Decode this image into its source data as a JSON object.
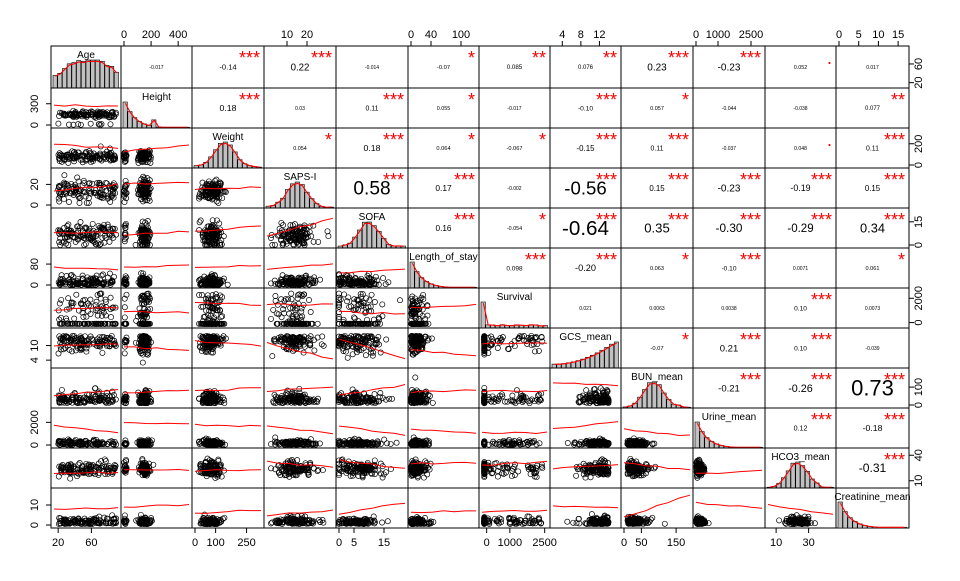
{
  "chart_data": {
    "type": "scatter-matrix",
    "title": "",
    "variables": [
      "Age",
      "Height",
      "Weight",
      "SAPS-I",
      "SOFA",
      "Length_of_stay",
      "Survival",
      "GCS_mean",
      "BUN_mean",
      "Urine_mean",
      "HCO3_mean",
      "Creatinine_mean"
    ],
    "diagonal_labels": [
      "Age",
      "Height",
      "Weight",
      "SAPS-I",
      "SOFA",
      "Length_of_stay",
      "Survival",
      "GCS_mean",
      "BUN_mean",
      "Urine_mean",
      "HCO3_mean",
      "Creatinine_mean"
    ],
    "ranges": [
      [
        15,
        92
      ],
      [
        0,
        480
      ],
      [
        0,
        320
      ],
      [
        0,
        33
      ],
      [
        0,
        22
      ],
      [
        0,
        130
      ],
      [
        -200,
        2600
      ],
      [
        2,
        16
      ],
      [
        0,
        190
      ],
      [
        0,
        3000
      ],
      [
        5,
        45
      ],
      [
        0,
        17
      ]
    ],
    "top_axis_ticks": [
      {
        "col": 1,
        "labels": [
          "0",
          "200",
          "400"
        ],
        "values": [
          0,
          200,
          400
        ]
      },
      {
        "col": 3,
        "labels": [
          "10",
          "20"
        ],
        "values": [
          10,
          20
        ]
      },
      {
        "col": 5,
        "labels": [
          "0",
          "40",
          "100"
        ],
        "values": [
          0,
          40,
          100
        ]
      },
      {
        "col": 7,
        "labels": [
          "4",
          "8",
          "12"
        ],
        "values": [
          4,
          8,
          12
        ]
      },
      {
        "col": 9,
        "labels": [
          "0",
          "1000",
          "2500"
        ],
        "values": [
          0,
          1000,
          2500
        ]
      },
      {
        "col": 11,
        "labels": [
          "0",
          "5",
          "10",
          "15"
        ],
        "values": [
          0,
          5,
          10,
          15
        ]
      }
    ],
    "bottom_axis_ticks": [
      {
        "col": 0,
        "labels": [
          "20",
          "60"
        ],
        "values": [
          20,
          60
        ]
      },
      {
        "col": 2,
        "labels": [
          "0",
          "100",
          "250"
        ],
        "values": [
          0,
          100,
          250
        ]
      },
      {
        "col": 4,
        "labels": [
          "0",
          "5",
          "15"
        ],
        "values": [
          0,
          5,
          15
        ]
      },
      {
        "col": 6,
        "labels": [
          "0",
          "1000",
          "2500"
        ],
        "values": [
          0,
          1000,
          2500
        ]
      },
      {
        "col": 8,
        "labels": [
          "0",
          "50",
          "150"
        ],
        "values": [
          0,
          50,
          150
        ]
      },
      {
        "col": 10,
        "labels": [
          "10",
          "30"
        ],
        "values": [
          10,
          30
        ]
      }
    ],
    "left_axis_ticks": [
      {
        "row": 1,
        "labels": [
          "0",
          "300"
        ],
        "values": [
          0,
          300
        ]
      },
      {
        "row": 3,
        "labels": [
          "0",
          "20"
        ],
        "values": [
          0,
          20
        ]
      },
      {
        "row": 5,
        "labels": [
          "0",
          "80"
        ],
        "values": [
          0,
          80
        ]
      },
      {
        "row": 7,
        "labels": [
          "4",
          "10"
        ],
        "values": [
          4,
          10
        ]
      },
      {
        "row": 9,
        "labels": [
          "0",
          "2000"
        ],
        "values": [
          0,
          2000
        ]
      },
      {
        "row": 11,
        "labels": [
          "0",
          "10"
        ],
        "values": [
          0,
          10
        ]
      }
    ],
    "right_axis_ticks": [
      {
        "row": 0,
        "labels": [
          "20",
          "60"
        ],
        "values": [
          20,
          60
        ]
      },
      {
        "row": 2,
        "labels": [
          "0",
          "200"
        ],
        "values": [
          0,
          200
        ]
      },
      {
        "row": 4,
        "labels": [
          "0",
          "15"
        ],
        "values": [
          0,
          15
        ]
      },
      {
        "row": 6,
        "labels": [
          "0",
          "2000"
        ],
        "values": [
          0,
          2000
        ]
      },
      {
        "row": 8,
        "labels": [
          "0",
          "100"
        ],
        "values": [
          0,
          100
        ]
      },
      {
        "row": 10,
        "labels": [
          "10",
          "40"
        ],
        "values": [
          10,
          40
        ]
      }
    ],
    "correlations": [
      {
        "row": 0,
        "col": 1,
        "value": -0.017,
        "label": "-0.017",
        "stars": ""
      },
      {
        "row": 0,
        "col": 2,
        "value": -0.14,
        "label": "-0.14",
        "stars": "***"
      },
      {
        "row": 0,
        "col": 3,
        "value": 0.22,
        "label": "0.22",
        "stars": "***"
      },
      {
        "row": 0,
        "col": 4,
        "value": -0.014,
        "label": "-0.014",
        "stars": ""
      },
      {
        "row": 0,
        "col": 5,
        "value": -0.07,
        "label": "-0.07",
        "stars": "*"
      },
      {
        "row": 0,
        "col": 6,
        "value": 0.085,
        "label": "0.085",
        "stars": "**"
      },
      {
        "row": 0,
        "col": 7,
        "value": 0.076,
        "label": "0.076",
        "stars": "**"
      },
      {
        "row": 0,
        "col": 8,
        "value": 0.23,
        "label": "0.23",
        "stars": "***"
      },
      {
        "row": 0,
        "col": 9,
        "value": -0.23,
        "label": "-0.23",
        "stars": "***"
      },
      {
        "row": 0,
        "col": 10,
        "value": 0.052,
        "label": "0.052",
        "stars": "."
      },
      {
        "row": 0,
        "col": 11,
        "value": 0.017,
        "label": "0.017",
        "stars": ""
      },
      {
        "row": 1,
        "col": 2,
        "value": 0.18,
        "label": "0.18",
        "stars": "***"
      },
      {
        "row": 1,
        "col": 3,
        "value": 0.03,
        "label": "0.03",
        "stars": ""
      },
      {
        "row": 1,
        "col": 4,
        "value": 0.11,
        "label": "0.11",
        "stars": "***"
      },
      {
        "row": 1,
        "col": 5,
        "value": 0.055,
        "label": "0.055",
        "stars": "*"
      },
      {
        "row": 1,
        "col": 6,
        "value": -0.017,
        "label": "-0.017",
        "stars": ""
      },
      {
        "row": 1,
        "col": 7,
        "value": -0.1,
        "label": "-0.10",
        "stars": "***"
      },
      {
        "row": 1,
        "col": 8,
        "value": 0.057,
        "label": "0.057",
        "stars": "*"
      },
      {
        "row": 1,
        "col": 9,
        "value": -0.044,
        "label": "-0.044",
        "stars": ""
      },
      {
        "row": 1,
        "col": 10,
        "value": -0.038,
        "label": "-0.038",
        "stars": ""
      },
      {
        "row": 1,
        "col": 11,
        "value": 0.077,
        "label": "0.077",
        "stars": "**"
      },
      {
        "row": 2,
        "col": 3,
        "value": 0.054,
        "label": "0.054",
        "stars": "*"
      },
      {
        "row": 2,
        "col": 4,
        "value": 0.18,
        "label": "0.18",
        "stars": "***"
      },
      {
        "row": 2,
        "col": 5,
        "value": 0.064,
        "label": "0.064",
        "stars": "*"
      },
      {
        "row": 2,
        "col": 6,
        "value": -0.067,
        "label": "-0.067",
        "stars": "*"
      },
      {
        "row": 2,
        "col": 7,
        "value": -0.15,
        "label": "-0.15",
        "stars": "***"
      },
      {
        "row": 2,
        "col": 8,
        "value": 0.11,
        "label": "0.11",
        "stars": "***"
      },
      {
        "row": 2,
        "col": 9,
        "value": -0.037,
        "label": "-0.037",
        "stars": ""
      },
      {
        "row": 2,
        "col": 10,
        "value": 0.048,
        "label": "0.048",
        "stars": "."
      },
      {
        "row": 2,
        "col": 11,
        "value": 0.11,
        "label": "0.11",
        "stars": "***"
      },
      {
        "row": 3,
        "col": 4,
        "value": 0.58,
        "label": "0.58",
        "stars": "***"
      },
      {
        "row": 3,
        "col": 5,
        "value": 0.17,
        "label": "0.17",
        "stars": "***"
      },
      {
        "row": 3,
        "col": 6,
        "value": -0.002,
        "label": "-0.002",
        "stars": ""
      },
      {
        "row": 3,
        "col": 7,
        "value": -0.56,
        "label": "-0.56",
        "stars": "***"
      },
      {
        "row": 3,
        "col": 8,
        "value": 0.15,
        "label": "0.15",
        "stars": "***"
      },
      {
        "row": 3,
        "col": 9,
        "value": -0.23,
        "label": "-0.23",
        "stars": "***"
      },
      {
        "row": 3,
        "col": 10,
        "value": -0.19,
        "label": "-0.19",
        "stars": "***"
      },
      {
        "row": 3,
        "col": 11,
        "value": 0.15,
        "label": "0.15",
        "stars": "***"
      },
      {
        "row": 4,
        "col": 5,
        "value": 0.16,
        "label": "0.16",
        "stars": "***"
      },
      {
        "row": 4,
        "col": 6,
        "value": -0.054,
        "label": "-0.054",
        "stars": "*"
      },
      {
        "row": 4,
        "col": 7,
        "value": -0.64,
        "label": "-0.64",
        "stars": "***"
      },
      {
        "row": 4,
        "col": 8,
        "value": 0.35,
        "label": "0.35",
        "stars": "***"
      },
      {
        "row": 4,
        "col": 9,
        "value": -0.3,
        "label": "-0.30",
        "stars": "***"
      },
      {
        "row": 4,
        "col": 10,
        "value": -0.29,
        "label": "-0.29",
        "stars": "***"
      },
      {
        "row": 4,
        "col": 11,
        "value": 0.34,
        "label": "0.34",
        "stars": "***"
      },
      {
        "row": 5,
        "col": 6,
        "value": 0.098,
        "label": "0.098",
        "stars": "***"
      },
      {
        "row": 5,
        "col": 7,
        "value": -0.2,
        "label": "-0.20",
        "stars": "***"
      },
      {
        "row": 5,
        "col": 8,
        "value": 0.063,
        "label": "0.063",
        "stars": "*"
      },
      {
        "row": 5,
        "col": 9,
        "value": -0.1,
        "label": "-0.10",
        "stars": "***"
      },
      {
        "row": 5,
        "col": 10,
        "value": 0.0071,
        "label": "0.0071",
        "stars": ""
      },
      {
        "row": 5,
        "col": 11,
        "value": 0.061,
        "label": "0.061",
        "stars": "*"
      },
      {
        "row": 6,
        "col": 7,
        "value": 0.021,
        "label": "0.021",
        "stars": ""
      },
      {
        "row": 6,
        "col": 8,
        "value": 0.0063,
        "label": "0.0063",
        "stars": ""
      },
      {
        "row": 6,
        "col": 9,
        "value": 0.0038,
        "label": "0.0038",
        "stars": ""
      },
      {
        "row": 6,
        "col": 10,
        "value": 0.1,
        "label": "0.10",
        "stars": "***"
      },
      {
        "row": 6,
        "col": 11,
        "value": 0.0073,
        "label": "0.0073",
        "stars": ""
      },
      {
        "row": 7,
        "col": 8,
        "value": -0.07,
        "label": "-0.07",
        "stars": "*"
      },
      {
        "row": 7,
        "col": 9,
        "value": 0.21,
        "label": "0.21",
        "stars": "***"
      },
      {
        "row": 7,
        "col": 10,
        "value": 0.1,
        "label": "0.10",
        "stars": "***"
      },
      {
        "row": 7,
        "col": 11,
        "value": -0.039,
        "label": "-0.039",
        "stars": ""
      },
      {
        "row": 8,
        "col": 9,
        "value": -0.21,
        "label": "-0.21",
        "stars": "***"
      },
      {
        "row": 8,
        "col": 10,
        "value": -0.26,
        "label": "-0.26",
        "stars": "***"
      },
      {
        "row": 8,
        "col": 11,
        "value": 0.73,
        "label": "0.73",
        "stars": "***"
      },
      {
        "row": 9,
        "col": 10,
        "value": 0.12,
        "label": "0.12",
        "stars": "***"
      },
      {
        "row": 9,
        "col": 11,
        "value": -0.18,
        "label": "-0.18",
        "stars": "***"
      },
      {
        "row": 10,
        "col": 11,
        "value": -0.31,
        "label": "-0.31",
        "stars": "***"
      }
    ],
    "colors": {
      "stars": "#ff0000",
      "smoother": "#ff0000",
      "points": "#000000",
      "bars": "#c0c0c0",
      "frame": "#000000"
    }
  }
}
